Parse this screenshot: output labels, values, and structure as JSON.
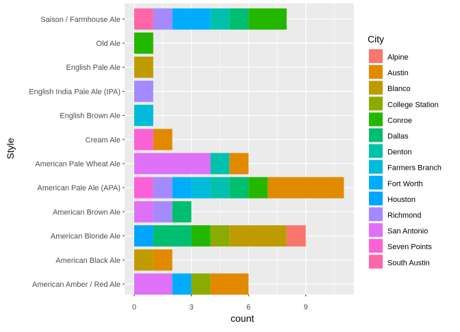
{
  "chart_data": {
    "type": "bar",
    "orientation": "horizontal",
    "stacked": true,
    "xlabel": "count",
    "ylabel": "Style",
    "xlim": [
      0,
      11
    ],
    "x_ticks": [
      0,
      3,
      6,
      9
    ],
    "grid": true,
    "legend_title": "City",
    "legend_position": "right",
    "categories": [
      "American Amber / Red Ale",
      "American Black Ale",
      "American Blonde Ale",
      "American Brown Ale",
      "American Pale Ale (APA)",
      "American Pale Wheat Ale",
      "Cream Ale",
      "English Brown Ale",
      "English India Pale Ale (IPA)",
      "English Pale Ale",
      "Old Ale",
      "Saison / Farmhouse Ale"
    ],
    "series": [
      {
        "name": "Alpine",
        "color": "#F8766D",
        "values": [
          0,
          0,
          1,
          0,
          0,
          0,
          0,
          0,
          0,
          0,
          0,
          0
        ]
      },
      {
        "name": "Austin",
        "color": "#E18A00",
        "values": [
          2,
          1,
          0,
          0,
          4,
          1,
          1,
          0,
          0,
          0,
          0,
          0
        ]
      },
      {
        "name": "Blanco",
        "color": "#BE9C00",
        "values": [
          0,
          1,
          3,
          0,
          0,
          0,
          0,
          0,
          0,
          1,
          0,
          0
        ]
      },
      {
        "name": "College Station",
        "color": "#8CAB00",
        "values": [
          1,
          0,
          1,
          0,
          0,
          0,
          0,
          0,
          0,
          0,
          0,
          0
        ]
      },
      {
        "name": "Conroe",
        "color": "#24B700",
        "values": [
          0,
          0,
          1,
          0,
          1,
          0,
          0,
          0,
          0,
          0,
          1,
          2
        ]
      },
      {
        "name": "Dallas",
        "color": "#00BE70",
        "values": [
          0,
          0,
          2,
          1,
          1,
          0,
          0,
          0,
          0,
          0,
          0,
          1
        ]
      },
      {
        "name": "Denton",
        "color": "#00C1AB",
        "values": [
          0,
          0,
          0,
          0,
          1,
          1,
          0,
          0,
          0,
          0,
          0,
          1
        ]
      },
      {
        "name": "Farmers Branch",
        "color": "#00BBDA",
        "values": [
          0,
          0,
          0,
          0,
          1,
          0,
          0,
          1,
          0,
          0,
          0,
          0
        ]
      },
      {
        "name": "Fort Worth",
        "color": "#00ACFC",
        "values": [
          1,
          0,
          0,
          0,
          1,
          0,
          0,
          0,
          0,
          0,
          0,
          2
        ]
      },
      {
        "name": "Houston",
        "color": "#00A5FF",
        "values": [
          0,
          0,
          1,
          0,
          0,
          0,
          0,
          0,
          0,
          0,
          0,
          0
        ]
      },
      {
        "name": "Richmond",
        "color": "#A58AFF",
        "values": [
          0,
          0,
          0,
          1,
          1,
          0,
          0,
          0,
          1,
          0,
          0,
          1
        ]
      },
      {
        "name": "San Antonio",
        "color": "#DF70F8",
        "values": [
          2,
          0,
          0,
          1,
          0,
          4,
          0,
          0,
          0,
          0,
          0,
          0
        ]
      },
      {
        "name": "Seven Points",
        "color": "#FB61D7",
        "values": [
          0,
          0,
          0,
          0,
          1,
          0,
          1,
          0,
          0,
          0,
          0,
          0
        ]
      },
      {
        "name": "South Austin",
        "color": "#FF66A8",
        "values": [
          0,
          0,
          0,
          0,
          0,
          0,
          0,
          0,
          0,
          0,
          0,
          1
        ]
      }
    ]
  }
}
